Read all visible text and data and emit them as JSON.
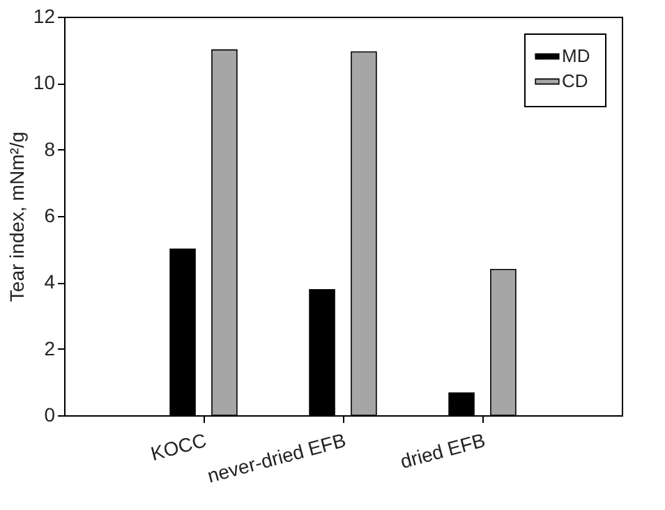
{
  "chart_data": {
    "type": "bar",
    "ylabel": "Tear index, mNm²/g",
    "categories": [
      "KOCC",
      "never-dried EFB",
      "dried EFB"
    ],
    "series": [
      {
        "name": "MD",
        "color": "#000000",
        "values": [
          5.0,
          3.78,
          0.67
        ]
      },
      {
        "name": "CD",
        "color": "#a6a6a6",
        "values": [
          11.0,
          10.94,
          4.39
        ]
      }
    ],
    "ylim": [
      0,
      12
    ],
    "yticks": [
      0,
      2,
      4,
      6,
      8,
      10,
      12
    ],
    "grid": false,
    "legend": "top right"
  }
}
